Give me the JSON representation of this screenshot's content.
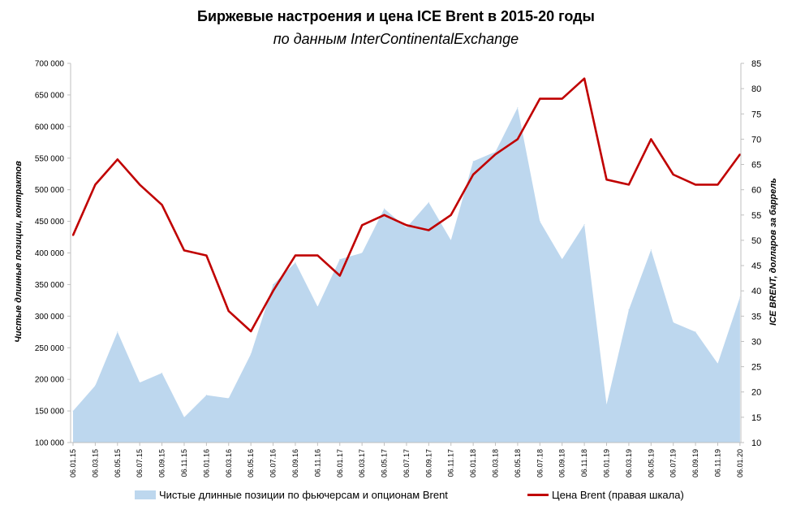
{
  "chart_data": {
    "type": "area+line",
    "title": "Биржевые настроения и цена ICE Brent в 2015-20 годы",
    "subtitle": "по данным InterContinentalExchange",
    "ylabel_left": "Чистые длинные позиции, контрактов",
    "ylabel_right": "ICE BRENT, долларов за баррель",
    "ylim_left": [
      100000,
      700000
    ],
    "ylim_right": [
      10,
      85
    ],
    "yticks_left": [
      "100 000",
      "150 000",
      "200 000",
      "250 000",
      "300 000",
      "350 000",
      "400 000",
      "450 000",
      "500 000",
      "550 000",
      "600 000",
      "650 000",
      "700 000"
    ],
    "yticks_right": [
      "10",
      "15",
      "20",
      "25",
      "30",
      "35",
      "40",
      "45",
      "50",
      "55",
      "60",
      "65",
      "70",
      "75",
      "80",
      "85"
    ],
    "xticks": [
      "06.01.15",
      "06.03.15",
      "06.05.15",
      "06.07.15",
      "06.09.15",
      "06.11.15",
      "06.01.16",
      "06.03.16",
      "06.05.16",
      "06.07.16",
      "06.09.16",
      "06.11.16",
      "06.01.17",
      "06.03.17",
      "06.05.17",
      "06.07.17",
      "06.09.17",
      "06.11.17",
      "06.01.18",
      "06.03.18",
      "06.05.18",
      "06.07.18",
      "06.09.18",
      "06.11.18",
      "06.01.19",
      "06.03.19",
      "06.05.19",
      "06.07.19",
      "06.09.19",
      "06.11.19",
      "06.01.20"
    ],
    "grid": false,
    "legend_position": "bottom",
    "series": [
      {
        "name": "Чистые длинные позиции по фьючерсам и опционам Brent",
        "kind": "area",
        "axis": "left",
        "color": "#bdd7ee",
        "x_index": [
          0,
          1,
          2,
          3,
          4,
          5,
          6,
          7,
          8,
          9,
          10,
          11,
          12,
          13,
          14,
          15,
          16,
          17,
          18,
          19,
          20,
          21,
          22,
          23,
          24,
          25,
          26,
          27,
          28,
          29,
          30
        ],
        "values": [
          150000,
          190000,
          275000,
          195000,
          210000,
          140000,
          175000,
          170000,
          240000,
          350000,
          385000,
          315000,
          390000,
          400000,
          470000,
          440000,
          480000,
          420000,
          545000,
          560000,
          630000,
          450000,
          390000,
          445000,
          160000,
          310000,
          405000,
          290000,
          275000,
          225000,
          330000
        ]
      },
      {
        "name": "Цена Brent (правая шкала)",
        "kind": "line",
        "axis": "right",
        "color": "#c00000",
        "x_index": [
          0,
          1,
          2,
          3,
          4,
          5,
          6,
          7,
          8,
          9,
          10,
          11,
          12,
          13,
          14,
          15,
          16,
          17,
          18,
          19,
          20,
          21,
          22,
          23,
          24,
          25,
          26,
          27,
          28,
          29,
          30
        ],
        "values": [
          51,
          61,
          66,
          61,
          57,
          48,
          47,
          36,
          32,
          40,
          47,
          47,
          43,
          53,
          55,
          53,
          52,
          55,
          63,
          67,
          70,
          78,
          78,
          82,
          62,
          61,
          70,
          63,
          61,
          61,
          67
        ]
      }
    ]
  },
  "legend": {
    "area_label": "Чистые длинные позиции по фьючерсам и опционам Brent",
    "line_label": "Цена Brent (правая шкала)"
  }
}
